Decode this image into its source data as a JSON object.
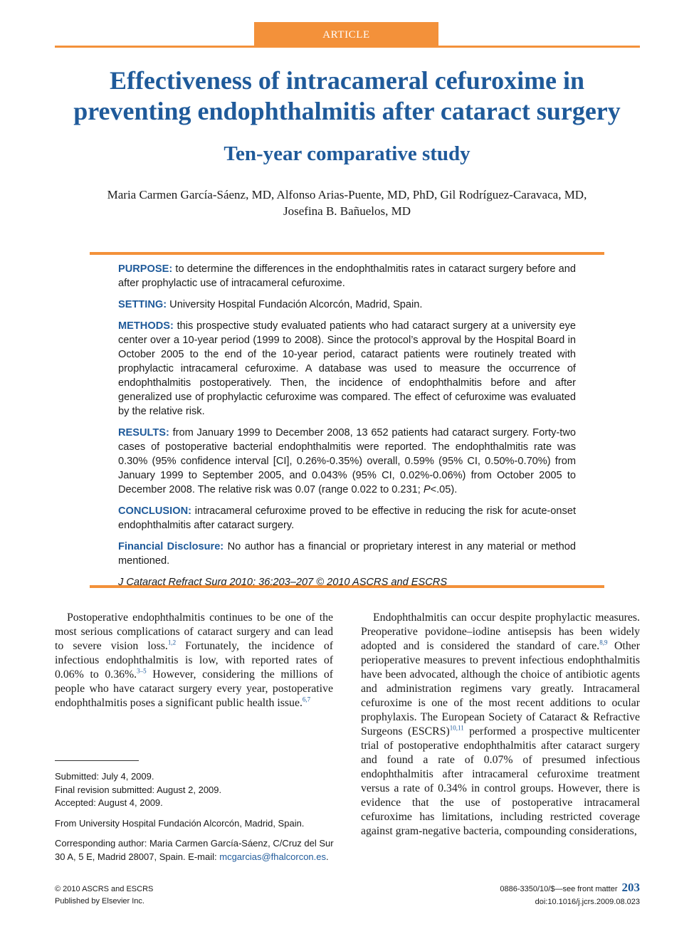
{
  "header": {
    "section_label": "ARTICLE"
  },
  "title": {
    "line1": "Effectiveness of intracameral cefuroxime in",
    "line2": "preventing endophthalmitis after cataract surgery"
  },
  "subtitle": "Ten-year comparative study",
  "authors": {
    "line1": "Maria Carmen García-Sáenz, MD, Alfonso Arias-Puente, MD, PhD, Gil Rodríguez-Caravaca, MD,",
    "line2": "Josefina B. Bañuelos, MD"
  },
  "abstract": {
    "purpose": {
      "label": "PURPOSE:",
      "text": "to determine the differences in the endophthalmitis rates in cataract surgery before and after prophylactic use of intracameral cefuroxime."
    },
    "setting": {
      "label": "SETTING:",
      "text": "University Hospital Fundación Alcorcón, Madrid, Spain."
    },
    "methods": {
      "label": "METHODS:",
      "text": "this prospective study evaluated patients who had cataract surgery at a university eye center over a 10-year period (1999 to 2008). Since the protocol’s approval by the Hospital Board in October 2005 to the end of the 10-year period, cataract patients were routinely treated with prophylactic intracameral cefuroxime. A database was used to measure the occurrence of endophthalmitis postoperatively. Then, the incidence of endophthalmitis before and after generalized use of prophylactic cefuroxime was compared. The effect of cefuroxime was evaluated by the relative risk."
    },
    "results": {
      "label": "RESULTS:",
      "text_before": "from January 1999 to December 2008, 13 652 patients had cataract surgery. Forty-two cases of postoperative bacterial endophthalmitis were reported. The endophthalmitis rate was 0.30% (95% confidence interval [CI], 0.26%-0.35%) overall, 0.59% (95% CI, 0.50%-0.70%) from January 1999 to September 2005, and 0.043% (95% CI, 0.02%-0.06%) from October 2005 to December 2008. The relative risk was 0.07 (range 0.022 to 0.231; ",
      "p_symbol": "P",
      "text_after": "<.05)."
    },
    "conclusion": {
      "label": "CONCLUSION:",
      "text": "intracameral cefuroxime proved to be effective in reducing the risk for acute-onset endophthalmitis after cataract surgery."
    },
    "financial": {
      "label": "Financial Disclosure:",
      "text": "No author has a financial or proprietary interest in any material or method mentioned."
    },
    "citation": "J Cataract Refract Surg 2010; 36:203–207 © 2010 ASCRS and ESCRS"
  },
  "body": {
    "left": {
      "t1": "Postoperative endophthalmitis continues to be one of the most serious complications of cataract surgery and can lead to severe vision loss.",
      "r1": "1,2",
      "t2": " Fortunately, the incidence of infectious endophthalmitis is low, with reported rates of 0.06% to 0.36%.",
      "r2": "3–5",
      "t3": " However, considering the millions of people who have cataract surgery every year, postoperative endophthalmitis poses a significant public health issue.",
      "r3": "6,7"
    },
    "right": {
      "t1": "Endophthalmitis can occur despite prophylactic measures. Preoperative povidone–iodine antisepsis has been widely adopted and is considered the standard of care.",
      "r1": "8,9",
      "t2": " Other perioperative measures to prevent infectious endophthalmitis have been advocated, although the choice of antibiotic agents and administration regimens vary greatly. Intracameral cefuroxime is one of the most recent additions to ocular prophylaxis. The European Society of Cataract & Refractive Surgeons (ESCRS)",
      "r2": "10,11",
      "t3": " performed a prospective multicenter trial of postoperative endophthalmitis after cataract surgery and found a rate of 0.07% of presumed infectious endophthalmitis after intracameral cefuroxime treatment versus a rate of 0.34% in control groups. However, there is evidence that the use of postoperative intracameral cefuroxime has limitations, including restricted coverage against gram-negative bacteria, compounding considerations,"
    }
  },
  "footnotes": {
    "submitted": "Submitted: July 4, 2009.",
    "final_revision": "Final revision submitted: August 2, 2009.",
    "accepted": "Accepted: August 4, 2009.",
    "from": "From University Hospital Fundación Alcorcón, Madrid, Spain.",
    "corresponding": "Corresponding author: Maria Carmen García-Sáenz, C/Cruz del Sur 30 A, 5 E, Madrid 28007, Spain. E-mail: ",
    "email": "mcgarcias@fhalcorcon.es",
    "corresponding_end": "."
  },
  "footer": {
    "copyright": "© 2010 ASCRS and ESCRS",
    "publisher": "Published by Elsevier Inc.",
    "issn": "0886-3350/10/$—see front matter",
    "doi": "doi:10.1016/j.jcrs.2009.08.023",
    "page_number": "203"
  }
}
